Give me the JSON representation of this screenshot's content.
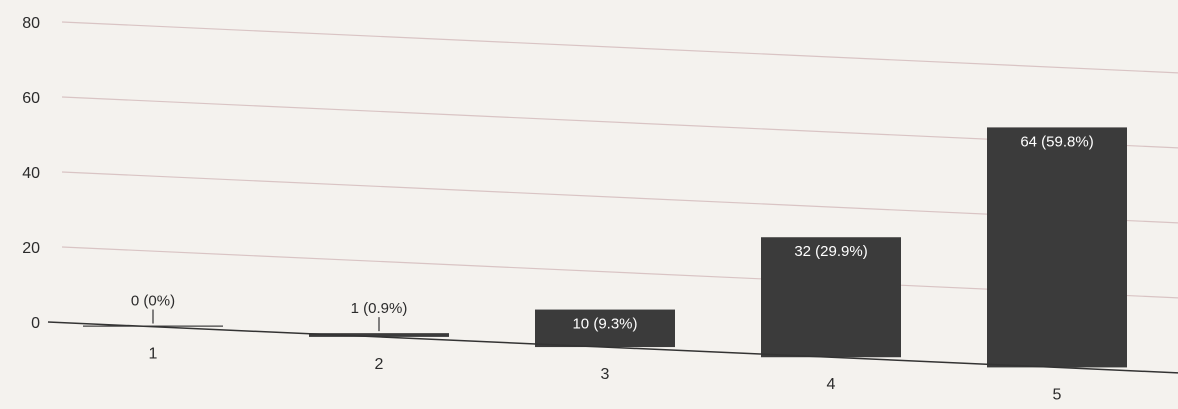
{
  "chart_data": {
    "type": "bar",
    "title": "",
    "xlabel": "",
    "ylabel": "",
    "categories": [
      "1",
      "2",
      "3",
      "4",
      "5"
    ],
    "values": [
      0,
      1,
      10,
      32,
      64
    ],
    "data_labels": [
      "0 (0%)",
      "1 (0.9%)",
      "10 (9.3%)",
      "32 (29.9%)",
      "64 (59.8%)"
    ],
    "y_ticks": [
      "0",
      "20",
      "40",
      "60",
      "80"
    ],
    "ylim": [
      0,
      80
    ],
    "grid": true,
    "legend": "none",
    "colors": {
      "bar": "#3b3b3b",
      "gridline": "#d9c4c4",
      "axis": "#333333",
      "label_inside": "#ffffff",
      "label_outside": "#2b2b2b"
    }
  }
}
